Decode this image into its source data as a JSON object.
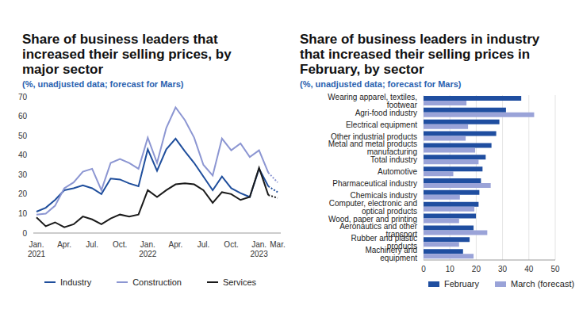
{
  "chart_data": [
    {
      "type": "line",
      "title": "Share of business leaders that increased their selling prices, by major sector",
      "subtitle": "(%, unadjusted data; forecast for Mars)",
      "categories": [
        "Jan. 2021",
        null,
        null,
        "Apr.",
        null,
        null,
        "Jul.",
        null,
        null,
        "Oct.",
        null,
        null,
        "Jan. 2022",
        null,
        null,
        "Apr.",
        null,
        null,
        "Jul.",
        null,
        null,
        "Oct.",
        null,
        null,
        "Jan. 2023",
        null,
        "Mar."
      ],
      "series": [
        {
          "name": "Industry",
          "color": "#1f4e9c",
          "values": [
            11,
            13,
            17,
            22,
            23,
            24.5,
            23,
            20,
            28,
            27.5,
            25.5,
            24,
            43,
            32,
            43,
            48.5,
            42,
            36,
            29,
            22,
            29,
            23,
            20.5,
            18.5,
            33,
            24,
            21
          ]
        },
        {
          "name": "Construction",
          "color": "#8c96d2",
          "values": [
            9.5,
            10,
            14,
            23,
            26,
            31.5,
            33,
            22,
            36,
            38,
            36,
            33,
            49,
            36,
            54,
            64.5,
            58,
            49,
            35,
            29.5,
            48.5,
            42.5,
            46,
            39,
            42.5,
            31,
            26
          ]
        },
        {
          "name": "Services",
          "color": "#1a1a1a",
          "values": [
            8,
            3.5,
            5.5,
            3,
            4.5,
            8.5,
            7,
            4.5,
            7.5,
            9.5,
            8.5,
            9.5,
            22,
            18.5,
            22,
            25,
            25.5,
            25,
            22,
            15.5,
            21,
            20,
            17,
            18.5,
            33.5,
            19.5,
            18
          ]
        }
      ],
      "ylim": [
        0,
        70
      ],
      "yticks": [
        0,
        10,
        20,
        30,
        40,
        50,
        60,
        70
      ],
      "grid": false,
      "legend": "bottom"
    },
    {
      "type": "bar",
      "orientation": "horizontal",
      "title": "Share of business leaders in industry that increased their selling prices in February, by sector",
      "subtitle": "(%, unadjusted data; forecast for Mars)",
      "categories": [
        "Wearing apparel, textiles, footwear",
        "Agri-food industry",
        "Electrical equipment",
        "Other industrial products",
        "Metal and metal products manufacturing",
        "Total industry",
        "Automotive",
        "Pharmaceutical industry",
        "Chemicals industry",
        "Computer, electronic and optical products",
        "Wood, paper and printing",
        "Aeronautics and other transport",
        "Rubber and plastic products",
        "Machinery and equipment"
      ],
      "series": [
        {
          "name": "February",
          "color": "#1f4ea0",
          "values": [
            37.1,
            31.3,
            28.8,
            27.6,
            25.8,
            23.6,
            22.4,
            21.8,
            21.2,
            20.9,
            19.9,
            19,
            17.5,
            15
          ]
        },
        {
          "name": "March (forecast)",
          "color": "#9aa3d8",
          "values": [
            16.3,
            42,
            16.9,
            16,
            19.6,
            20.9,
            11.3,
            25.5,
            13.8,
            19.3,
            13.5,
            24.2,
            13.5,
            19
          ]
        }
      ],
      "xlim": [
        0,
        50
      ],
      "xticks": [
        0,
        10,
        20,
        30,
        40,
        50
      ],
      "grid": true,
      "legend": "bottom"
    }
  ]
}
